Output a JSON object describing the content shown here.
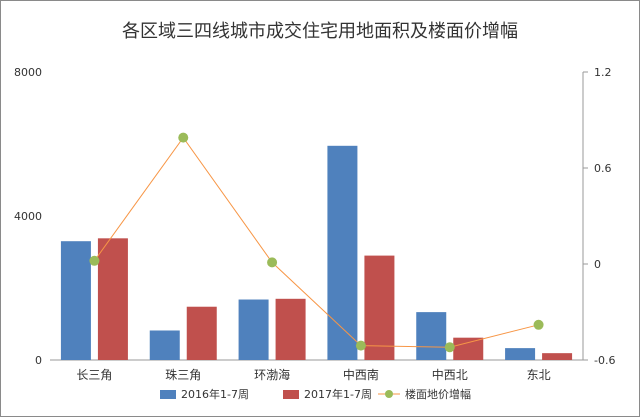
{
  "chart_data": {
    "type": "bar",
    "title": "各区域三四线城市成交住宅用地面积及楼面价增幅",
    "categories": [
      "长三角",
      "珠三角",
      "环渤海",
      "中西南",
      "中西北",
      "东北"
    ],
    "series": [
      {
        "name": "2016年1-7周",
        "kind": "bar",
        "axis": "left",
        "color": "#4f81bd",
        "values": [
          3300,
          820,
          1680,
          5950,
          1330,
          330
        ]
      },
      {
        "name": "2017年1-7周",
        "kind": "bar",
        "axis": "left",
        "color": "#c0504d",
        "values": [
          3380,
          1480,
          1700,
          2900,
          620,
          190
        ]
      },
      {
        "name": "楼面地价增幅",
        "kind": "line",
        "axis": "right",
        "color": "#f79646",
        "marker_color": "#9bbb59",
        "values": [
          0.02,
          0.79,
          0.01,
          -0.51,
          -0.52,
          -0.38
        ]
      }
    ],
    "left_axis": {
      "ylim": [
        0,
        8000
      ],
      "ticks": [
        "0",
        "4000",
        "8000"
      ]
    },
    "right_axis": {
      "ylim": [
        -0.6,
        1.2
      ],
      "ticks": [
        "-0.6",
        "0",
        "0.6",
        "1.2"
      ]
    },
    "grid": false,
    "legend_position": "bottom"
  }
}
